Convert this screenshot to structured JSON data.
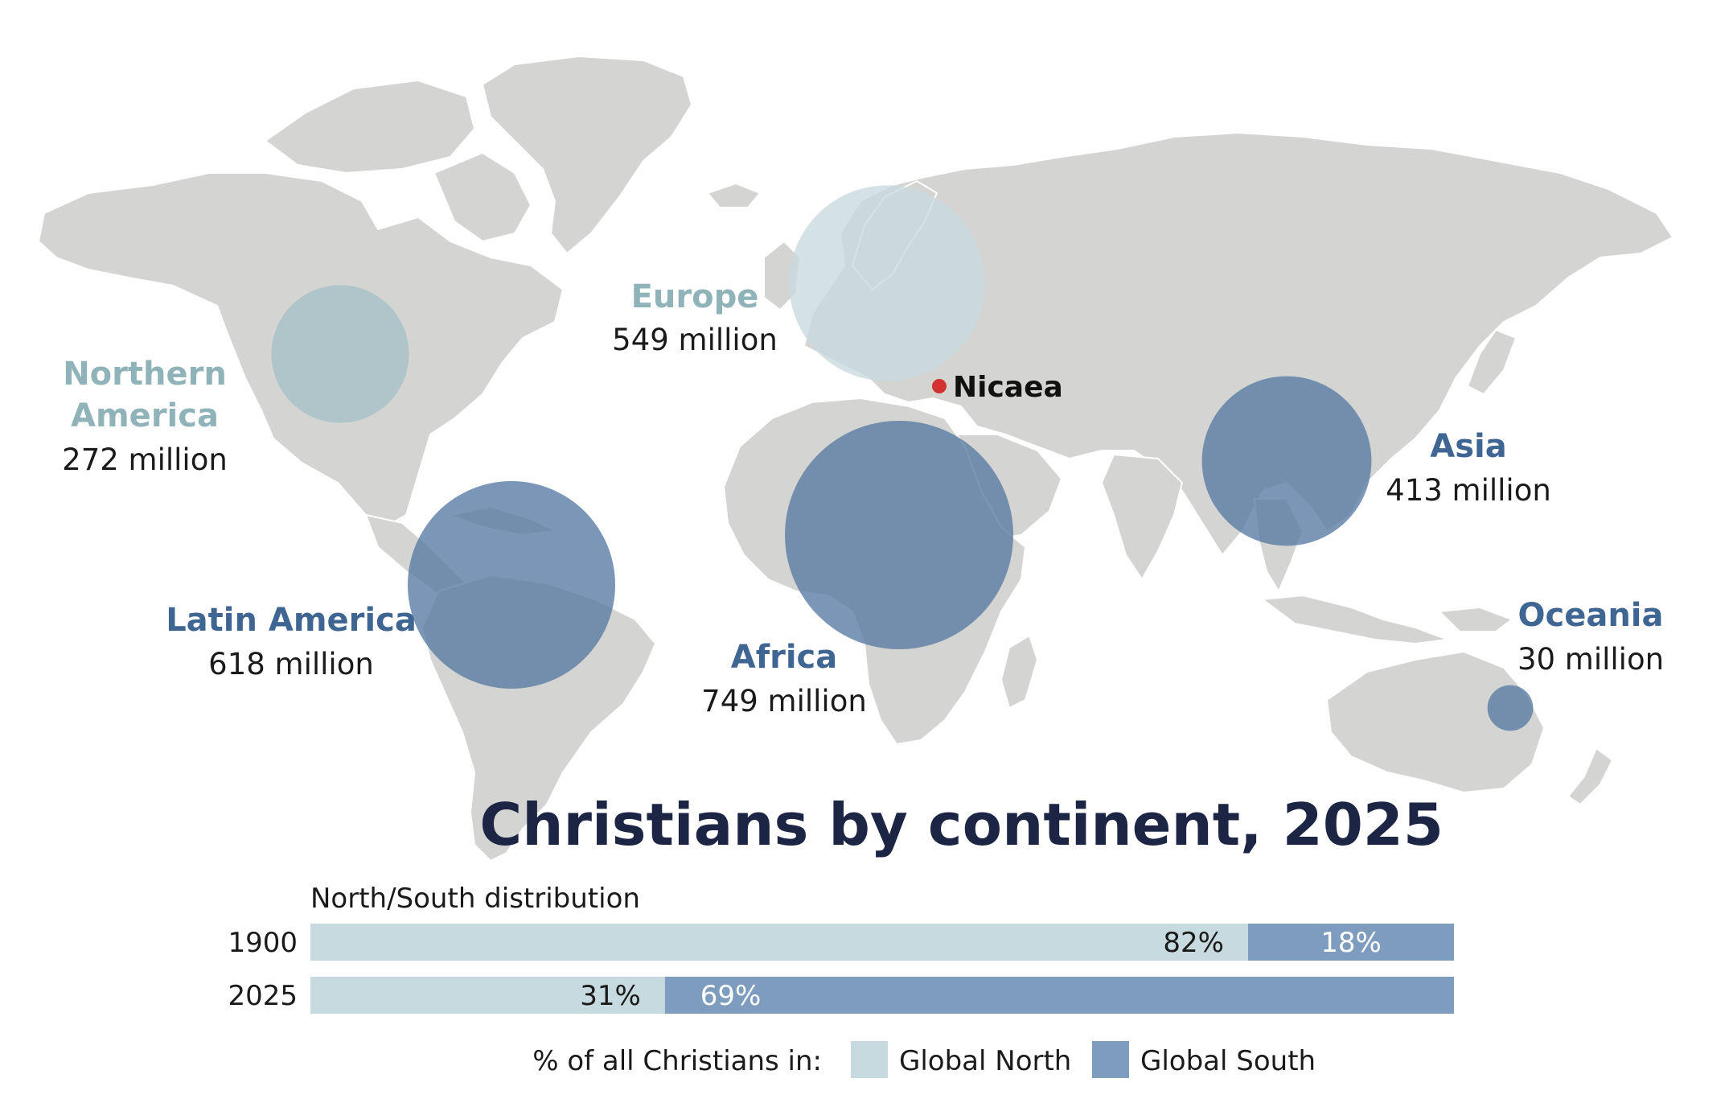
{
  "colors": {
    "land": "#d4d5d3",
    "bubble_north": "#a8c2c7",
    "bubble_north_light": "#c9dade",
    "bubble_south": "#5a7ca4",
    "bar_north": "#c7dadf",
    "bar_south": "#7e9cbd",
    "label_north": "#8fb3b8",
    "label_south": "#3f6592",
    "title": "#1d2545",
    "marker": "#d13232"
  },
  "marker": {
    "name": "Nicaea"
  },
  "regions": [
    {
      "id": "northern-america",
      "name_lines": [
        "Northern",
        "America"
      ],
      "value_text": "272 million",
      "millions": 272,
      "group": "north"
    },
    {
      "id": "europe",
      "name_lines": [
        "Europe"
      ],
      "value_text": "549 million",
      "millions": 549,
      "group": "north"
    },
    {
      "id": "latin-america",
      "name_lines": [
        "Latin America"
      ],
      "value_text": "618 million",
      "millions": 618,
      "group": "south"
    },
    {
      "id": "africa",
      "name_lines": [
        "Africa"
      ],
      "value_text": "749 million",
      "millions": 749,
      "group": "south"
    },
    {
      "id": "asia",
      "name_lines": [
        "Asia"
      ],
      "value_text": "413 million",
      "millions": 413,
      "group": "south"
    },
    {
      "id": "oceania",
      "name_lines": [
        "Oceania"
      ],
      "value_text": "30 million",
      "millions": 30,
      "group": "south"
    }
  ],
  "title": "Christians by continent, 2025",
  "distribution": {
    "label": "North/South distribution",
    "rows": [
      {
        "year": "1900",
        "north_pct": 82,
        "south_pct": 18,
        "north_label": "82%",
        "south_label": "18%"
      },
      {
        "year": "2025",
        "north_pct": 31,
        "south_pct": 69,
        "north_label": "31%",
        "south_label": "69%"
      }
    ]
  },
  "legend": {
    "prefix": "% of all Christians in:",
    "north_label": "Global North",
    "south_label": "Global South"
  }
}
